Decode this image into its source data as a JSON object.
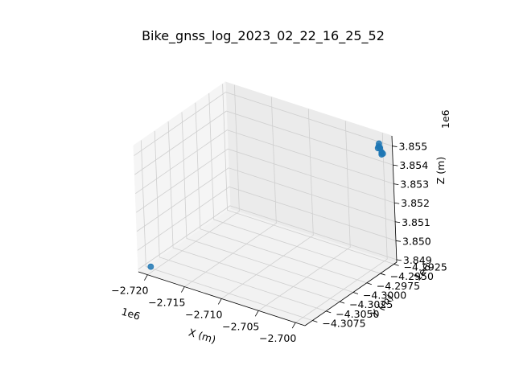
{
  "chart_data": {
    "type": "scatter",
    "projection": "3d",
    "title": "Bike_gnss_log_2023_02_22_16_25_52",
    "xlabel": "X (m)",
    "ylabel": "Y (m)",
    "zlabel": "Z (m)",
    "x_offset_label": "1e6",
    "y_offset_label": "1e6",
    "z_offset_label": "1e6",
    "x_ticks": [
      "−2.720",
      "−2.715",
      "−2.710",
      "−2.705",
      "−2.700"
    ],
    "y_ticks": [
      "−4.2925",
      "−4.2950",
      "−4.2975",
      "−4.3000",
      "−4.3025",
      "−4.3050",
      "−4.3075"
    ],
    "z_ticks": [
      "3.849",
      "3.850",
      "3.851",
      "3.852",
      "3.853",
      "3.854",
      "3.855"
    ],
    "xlim": [
      -2722000,
      -2698500
    ],
    "ylim": [
      -4308500,
      -4291500
    ],
    "zlim": [
      3848800,
      3855700
    ],
    "grid": true,
    "point_color": "#1f77b4",
    "series": [
      {
        "points": [
          {
            "x": -2721000,
            "y": -4292500,
            "z": 3849000
          },
          {
            "x": -2699100,
            "y": -4306800,
            "z": 3855400
          },
          {
            "x": -2699200,
            "y": -4307000,
            "z": 3855500
          },
          {
            "x": -2699000,
            "y": -4306900,
            "z": 3855300
          },
          {
            "x": -2698900,
            "y": -4306700,
            "z": 3855400
          },
          {
            "x": -2699050,
            "y": -4306600,
            "z": 3855350
          },
          {
            "x": -2698950,
            "y": -4307100,
            "z": 3855000
          },
          {
            "x": -2698850,
            "y": -4307200,
            "z": 3854950
          },
          {
            "x": -2698900,
            "y": -4307050,
            "z": 3855050
          },
          {
            "x": -2699000,
            "y": -4307150,
            "z": 3854900
          }
        ]
      }
    ]
  }
}
